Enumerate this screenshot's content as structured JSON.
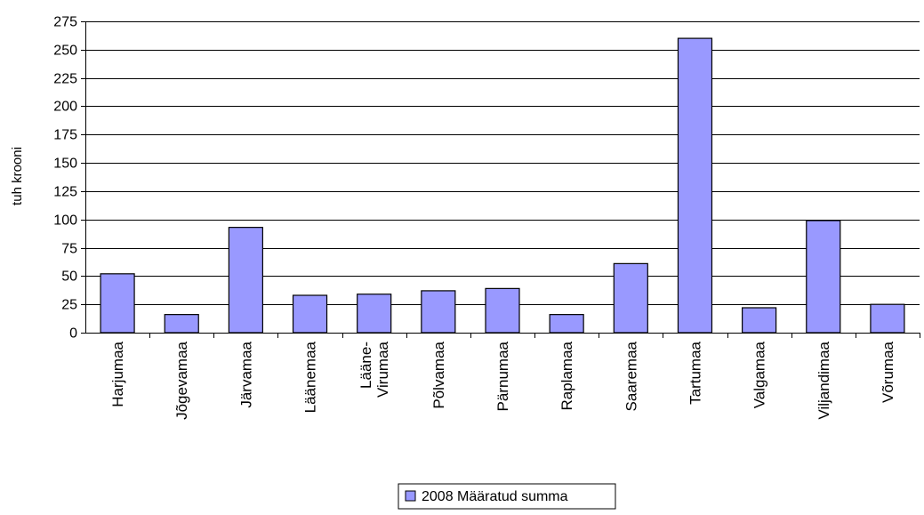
{
  "chart_data": {
    "type": "bar",
    "title": "",
    "xlabel": "",
    "ylabel": "tuh krooni",
    "ylim": [
      0,
      275
    ],
    "yticks": [
      0,
      25,
      50,
      75,
      100,
      125,
      150,
      175,
      200,
      225,
      250,
      275
    ],
    "grid": true,
    "legend_position": "bottom",
    "categories": [
      "Harjumaa",
      "Jõgevamaa",
      "Järvamaa",
      "Läänemaa",
      "Lääne-Virumaa",
      "Põlvamaa",
      "Pärnumaa",
      "Raplamaa",
      "Saaremaa",
      "Tartumaa",
      "Valgamaa",
      "Viljandimaa",
      "Võrumaa"
    ],
    "category_lines": [
      [
        "Harjumaa"
      ],
      [
        "Jõgevamaa"
      ],
      [
        "Järvamaa"
      ],
      [
        "Läänemaa"
      ],
      [
        "Lääne-",
        "Virumaa"
      ],
      [
        "Põlvamaa"
      ],
      [
        "Pärnumaa"
      ],
      [
        "Raplamaa"
      ],
      [
        "Saaremaa"
      ],
      [
        "Tartumaa"
      ],
      [
        "Valgamaa"
      ],
      [
        "Viljandimaa"
      ],
      [
        "Võrumaa"
      ]
    ],
    "series": [
      {
        "name": "2008 Määratud summa",
        "color": "#9999ff",
        "values": [
          52,
          16,
          93,
          33,
          34,
          37,
          39,
          16,
          61,
          260,
          22,
          99,
          25
        ]
      }
    ]
  }
}
